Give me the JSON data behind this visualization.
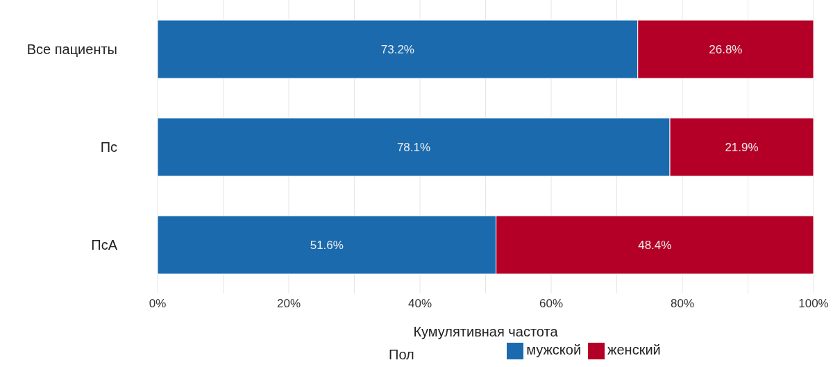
{
  "chart_data": {
    "type": "bar",
    "orientation": "horizontal",
    "stacked": true,
    "categories": [
      "Все пациенты",
      "Пс",
      "ПсА"
    ],
    "series": [
      {
        "name": "мужской",
        "color": "#1a6aad",
        "values": [
          73.2,
          78.1,
          51.6
        ],
        "value_labels": [
          "73.2%",
          "78.1%",
          "51.6%"
        ]
      },
      {
        "name": "женский",
        "color": "#b40026",
        "values": [
          26.8,
          21.9,
          48.4
        ],
        "value_labels": [
          "26.8%",
          "21.9%",
          "48.4%"
        ]
      }
    ],
    "xlim": [
      0,
      100
    ],
    "xticks": [
      {
        "value": 0,
        "label": "0%"
      },
      {
        "value": 10,
        "label": null
      },
      {
        "value": 20,
        "label": "20%"
      },
      {
        "value": 30,
        "label": null
      },
      {
        "value": 40,
        "label": "40%"
      },
      {
        "value": 50,
        "label": null
      },
      {
        "value": 60,
        "label": "60%"
      },
      {
        "value": 70,
        "label": null
      },
      {
        "value": 80,
        "label": "80%"
      },
      {
        "value": 90,
        "label": null
      },
      {
        "value": 100,
        "label": "100%"
      }
    ],
    "xlabel": "Кумулятивная частота",
    "legend_title": "Пол",
    "legend": "bottom",
    "grid": "x"
  }
}
